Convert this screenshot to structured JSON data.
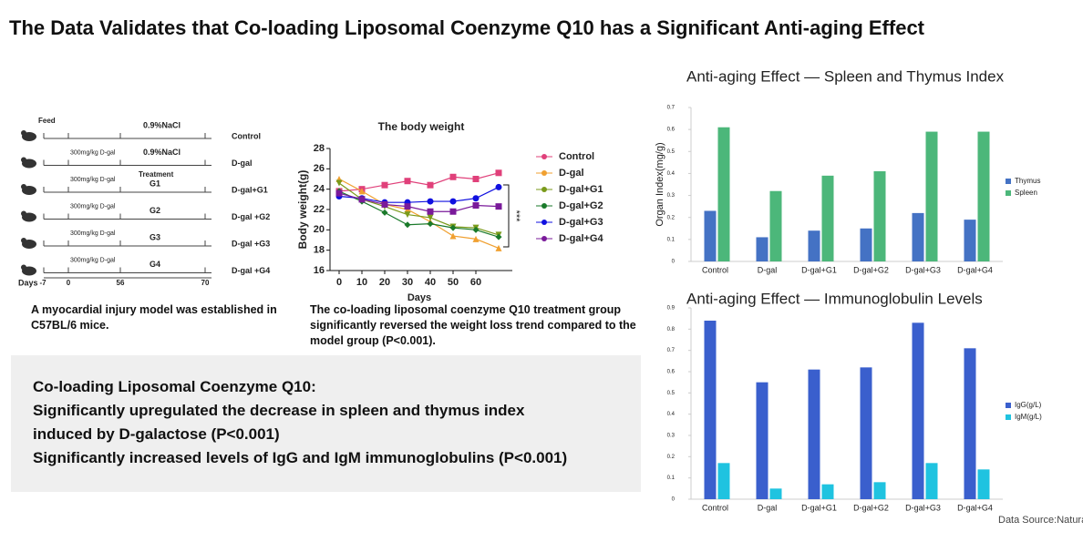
{
  "title": "The Data Validates that Co-loading Liposomal Coenzyme Q10 has a Significant Anti-aging Effect",
  "diagram": {
    "feed": "Feed",
    "treatment": "Treatment",
    "days": "Days",
    "day_ticks": [
      "-7",
      "0",
      "56",
      "70"
    ],
    "rows": [
      {
        "condition": "0.9%NaCl",
        "label": "Control",
        "color": "#cc44cc"
      },
      {
        "dose": "300mg/kg D-gal",
        "condition": "0.9%NaCl",
        "label": "D-gal",
        "color": "#e07020"
      },
      {
        "dose": "300mg/kg D-gal",
        "group": "G1",
        "label": "D-gal+G1",
        "color": "#4a7a20",
        "group_color": "#5a9a30"
      },
      {
        "dose": "300mg/kg D-gal",
        "group": "G2",
        "label": "D-gal +G2",
        "color": "#5a8a30",
        "group_color": "#5a9a30"
      },
      {
        "dose": "300mg/kg D-gal",
        "group": "G3",
        "label": "D-gal +G3",
        "color": "#3a6ad0",
        "group_color": "#2a8ad0"
      },
      {
        "dose": "300mg/kg D-gal",
        "group": "G4",
        "label": "D-gal +G4",
        "color": "#9040b0",
        "group_color": "#a040c0"
      }
    ]
  },
  "captions": [
    "A myocardial injury model was established in C57BL/6 mice.",
    "The co-loading liposomal coenzyme Q10 treatment group significantly reversed the weight loss trend compared to the model group (P<0.001)."
  ],
  "summary": [
    "Co-loading Liposomal Coenzyme Q10:",
    "Significantly upregulated the decrease in spleen and thymus index induced by D-galactose (P<0.001)",
    "Significantly increased levels of IgG and IgM immunoglobulins (P<0.001)"
  ],
  "source": "Data Source:Natura",
  "chart_data": [
    {
      "type": "line",
      "title": "The body weight",
      "xlabel": "Days",
      "ylabel": "Body weight(g)",
      "annotation": "***",
      "x": [
        0,
        10,
        20,
        30,
        40,
        50,
        60,
        70
      ],
      "xlim": [
        -4,
        76
      ],
      "xticks": [
        0,
        10,
        20,
        30,
        40,
        50,
        60
      ],
      "ylim": [
        16,
        28
      ],
      "yticks": [
        16,
        18,
        20,
        22,
        24,
        26,
        28
      ],
      "series": [
        {
          "name": "Control",
          "color": "#e0407a",
          "marker": "square",
          "values": [
            23.8,
            24.0,
            24.4,
            24.8,
            24.4,
            25.2,
            25.0,
            25.6
          ]
        },
        {
          "name": "D-gal",
          "color": "#f0a030",
          "marker": "triangle",
          "values": [
            25.0,
            23.8,
            22.5,
            22.0,
            20.8,
            19.4,
            19.1,
            18.2
          ]
        },
        {
          "name": "D-gal+G1",
          "color": "#7a9a1a",
          "marker": "triangle-down",
          "values": [
            24.6,
            23.0,
            22.3,
            21.5,
            21.2,
            20.3,
            20.2,
            19.5
          ]
        },
        {
          "name": "D-gal+G2",
          "color": "#1a7a2a",
          "marker": "diamond",
          "values": [
            23.8,
            22.8,
            21.7,
            20.5,
            20.6,
            20.2,
            20.0,
            19.3
          ]
        },
        {
          "name": "D-gal+G3",
          "color": "#1010e0",
          "marker": "circle",
          "values": [
            23.3,
            23.1,
            22.7,
            22.7,
            22.8,
            22.8,
            23.1,
            24.2
          ]
        },
        {
          "name": "D-gal+G4",
          "color": "#7a1a9a",
          "marker": "square",
          "values": [
            23.6,
            23.0,
            22.5,
            22.3,
            21.8,
            21.8,
            22.4,
            22.3
          ]
        }
      ]
    },
    {
      "type": "bar",
      "title": "Anti-aging Effect — Spleen and Thymus Index",
      "ylabel": "Organ Index(mg/g)",
      "categories": [
        "Control",
        "D-gal",
        "D-gal+G1",
        "D-gal+G2",
        "D-gal+G3",
        "D-gal+G4"
      ],
      "ylim": [
        0,
        0.7
      ],
      "yticks": [
        0,
        0.1,
        0.2,
        0.3,
        0.4,
        0.5,
        0.6,
        0.7
      ],
      "series": [
        {
          "name": "Thymus",
          "color": "#4472c4",
          "values": [
            0.23,
            0.11,
            0.14,
            0.15,
            0.22,
            0.19
          ]
        },
        {
          "name": "Spleen",
          "color": "#4cb77a",
          "values": [
            0.61,
            0.32,
            0.39,
            0.41,
            0.59,
            0.59
          ]
        }
      ]
    },
    {
      "type": "bar",
      "title": "Anti-aging Effect — Immunoglobulin Levels",
      "categories": [
        "Control",
        "D-gal",
        "D-gal+G1",
        "D-gal+G2",
        "D-gal+G3",
        "D-gal+G4"
      ],
      "ylim": [
        0,
        0.9
      ],
      "yticks": [
        0,
        0.1,
        0.2,
        0.3,
        0.4,
        0.5,
        0.6,
        0.7,
        0.8,
        0.9
      ],
      "series": [
        {
          "name": "IgG(g/L)",
          "color": "#3a5fcd",
          "values": [
            0.84,
            0.55,
            0.61,
            0.62,
            0.83,
            0.71
          ]
        },
        {
          "name": "IgM(g/L)",
          "color": "#1fc3e0",
          "values": [
            0.17,
            0.05,
            0.07,
            0.08,
            0.17,
            0.14
          ]
        }
      ]
    }
  ]
}
